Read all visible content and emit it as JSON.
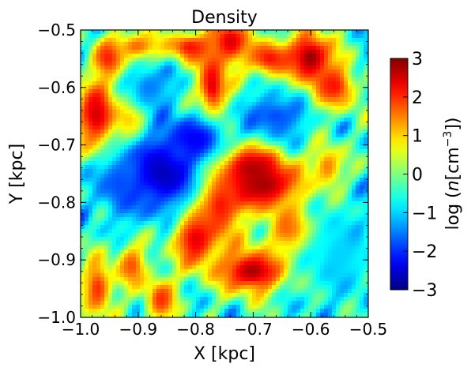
{
  "chart_data": {
    "type": "heatmap",
    "title": "Density",
    "xlabel": "X [kpc]",
    "ylabel": "Y [kpc]",
    "xlim": [
      -1.0,
      -0.5
    ],
    "ylim": [
      -1.0,
      -0.5
    ],
    "x_ticks": [
      -1.0,
      -0.9,
      -0.8,
      -0.7,
      -0.6,
      -0.5
    ],
    "x_tick_labels": [
      "−1.0",
      "−0.9",
      "−0.8",
      "−0.7",
      "−0.6",
      "−0.5"
    ],
    "y_ticks": [
      -1.0,
      -0.9,
      -0.8,
      -0.7,
      -0.6,
      -0.5
    ],
    "y_tick_labels": [
      "−1.0",
      "−0.9",
      "−0.8",
      "−0.7",
      "−0.6",
      "−0.5"
    ],
    "colormap": "jet",
    "colorbar": {
      "label": "log (n[cm⁻³])",
      "label_main": "log (",
      "label_var": "n",
      "label_unit": "[cm",
      "label_exp": "−3",
      "label_close": "])",
      "range": [
        -3,
        3
      ],
      "ticks": [
        -3,
        -2,
        -1,
        0,
        1,
        2,
        3
      ],
      "tick_labels": [
        "−3",
        "−2",
        "−1",
        "0",
        "1",
        "2",
        "3"
      ]
    },
    "features": [
      {
        "x": -0.71,
        "y": -0.74,
        "value": 3.0,
        "sx": 0.04,
        "sy": 0.03
      },
      {
        "x": -0.68,
        "y": -0.77,
        "value": 2.8,
        "sx": 0.05,
        "sy": 0.035
      },
      {
        "x": -0.76,
        "y": -0.8,
        "value": 2.5,
        "sx": 0.03,
        "sy": 0.045
      },
      {
        "x": -0.8,
        "y": -0.86,
        "value": 2.6,
        "sx": 0.03,
        "sy": 0.04
      },
      {
        "x": -0.7,
        "y": -0.92,
        "value": 2.8,
        "sx": 0.045,
        "sy": 0.03
      },
      {
        "x": -0.63,
        "y": -0.85,
        "value": 2.2,
        "sx": 0.03,
        "sy": 0.03
      },
      {
        "x": -0.6,
        "y": -0.55,
        "value": 3.0,
        "sx": 0.03,
        "sy": 0.035
      },
      {
        "x": -0.56,
        "y": -0.6,
        "value": 2.2,
        "sx": 0.03,
        "sy": 0.03
      },
      {
        "x": -0.67,
        "y": -0.55,
        "value": 2.2,
        "sx": 0.03,
        "sy": 0.025
      },
      {
        "x": -0.74,
        "y": -0.52,
        "value": 2.5,
        "sx": 0.025,
        "sy": 0.03
      },
      {
        "x": -0.77,
        "y": -0.6,
        "value": 2.5,
        "sx": 0.02,
        "sy": 0.05
      },
      {
        "x": -0.81,
        "y": -0.53,
        "value": 2.2,
        "sx": 0.03,
        "sy": 0.02
      },
      {
        "x": -0.97,
        "y": -0.65,
        "value": 2.6,
        "sx": 0.03,
        "sy": 0.05
      },
      {
        "x": -0.95,
        "y": -0.55,
        "value": 2.2,
        "sx": 0.02,
        "sy": 0.025
      },
      {
        "x": -0.9,
        "y": -0.53,
        "value": 1.8,
        "sx": 0.03,
        "sy": 0.02
      },
      {
        "x": -0.91,
        "y": -0.66,
        "value": 1.8,
        "sx": 0.02,
        "sy": 0.03
      },
      {
        "x": -0.97,
        "y": -0.95,
        "value": 2.0,
        "sx": 0.02,
        "sy": 0.04
      },
      {
        "x": -0.91,
        "y": -0.91,
        "value": 1.8,
        "sx": 0.02,
        "sy": 0.03
      },
      {
        "x": -0.86,
        "y": -0.97,
        "value": 2.0,
        "sx": 0.02,
        "sy": 0.03
      },
      {
        "x": -0.57,
        "y": -0.74,
        "value": 1.6,
        "sx": 0.02,
        "sy": 0.03
      },
      {
        "x": -0.86,
        "y": -0.75,
        "value": -2.7,
        "sx": 0.05,
        "sy": 0.05
      },
      {
        "x": -0.8,
        "y": -0.69,
        "value": -2.3,
        "sx": 0.04,
        "sy": 0.03
      },
      {
        "x": -0.93,
        "y": -0.77,
        "value": -1.8,
        "sx": 0.03,
        "sy": 0.04
      },
      {
        "x": -0.66,
        "y": -0.65,
        "value": -1.8,
        "sx": 0.04,
        "sy": 0.03
      },
      {
        "x": -0.88,
        "y": -0.6,
        "value": -1.5,
        "sx": 0.03,
        "sy": 0.03
      },
      {
        "x": -0.55,
        "y": -0.89,
        "value": -1.0,
        "sx": 0.05,
        "sy": 0.06
      }
    ]
  }
}
